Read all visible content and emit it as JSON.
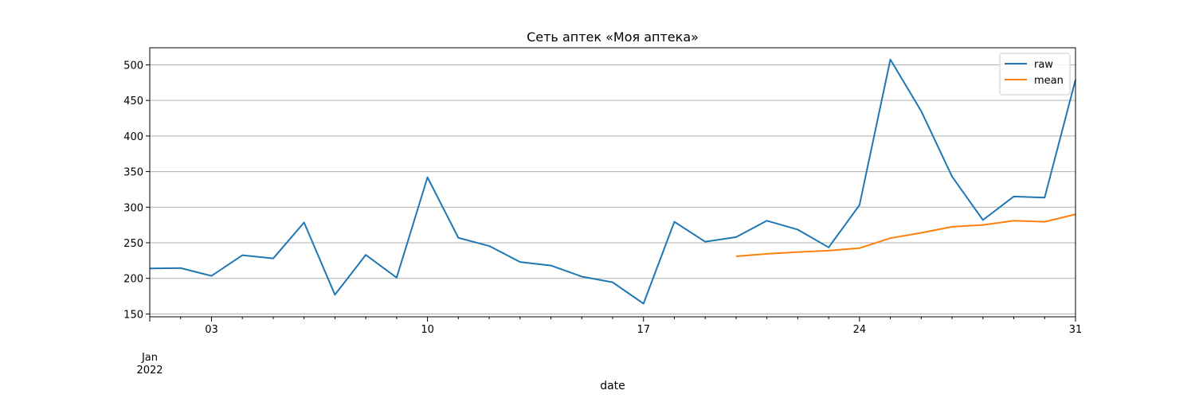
{
  "chart_data": {
    "type": "line",
    "title": "Сеть аптек «Моя аптека»",
    "xlabel": "date",
    "ylabel": "",
    "x": [
      "2022-01-01",
      "2022-01-02",
      "2022-01-03",
      "2022-01-04",
      "2022-01-05",
      "2022-01-06",
      "2022-01-07",
      "2022-01-08",
      "2022-01-09",
      "2022-01-10",
      "2022-01-11",
      "2022-01-12",
      "2022-01-13",
      "2022-01-14",
      "2022-01-15",
      "2022-01-16",
      "2022-01-17",
      "2022-01-18",
      "2022-01-19",
      "2022-01-20",
      "2022-01-21",
      "2022-01-22",
      "2022-01-23",
      "2022-01-24",
      "2022-01-25",
      "2022-01-26",
      "2022-01-27",
      "2022-01-28",
      "2022-01-29",
      "2022-01-30",
      "2022-01-31"
    ],
    "series": [
      {
        "name": "raw",
        "color": "#1f77b4",
        "values": [
          214,
          214.5,
          203.5,
          232.5,
          228,
          278.5,
          177,
          233,
          201,
          342,
          257,
          245.5,
          223,
          218,
          202.5,
          194.5,
          164.5,
          279.5,
          251.5,
          258,
          281,
          268.5,
          243.5,
          303,
          507.5,
          435,
          343,
          282,
          315,
          313.5,
          479
        ]
      },
      {
        "name": "mean",
        "color": "#ff7f0e",
        "values": [
          null,
          null,
          null,
          null,
          null,
          null,
          null,
          null,
          null,
          null,
          null,
          null,
          null,
          null,
          null,
          null,
          null,
          null,
          null,
          231,
          234.5,
          237,
          239,
          242.5,
          256.5,
          264,
          272.5,
          275,
          281,
          279.5,
          290
        ]
      }
    ],
    "ylim": [
      146,
      524
    ],
    "yticks": [
      150,
      200,
      250,
      300,
      350,
      400,
      450,
      500
    ],
    "xticks_major": [
      {
        "date": "2022-01-03",
        "label": "03"
      },
      {
        "date": "2022-01-10",
        "label": "10"
      },
      {
        "date": "2022-01-17",
        "label": "17"
      },
      {
        "date": "2022-01-24",
        "label": "24"
      },
      {
        "date": "2022-01-31",
        "label": "31"
      }
    ],
    "x_origin_label": {
      "month": "Jan",
      "year": "2022"
    },
    "grid": "y-major",
    "legend_position": "top-right"
  }
}
